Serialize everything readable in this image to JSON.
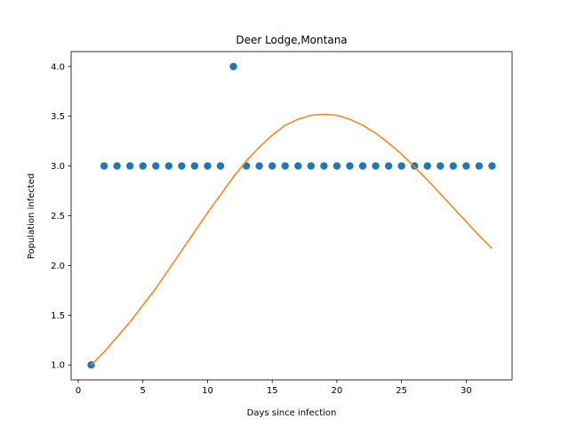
{
  "chart_data": {
    "type": "scatter",
    "title": "Deer Lodge,Montana",
    "xlabel": "Days since infection",
    "ylabel": "Population infected",
    "xlim": [
      -0.55,
      33.55
    ],
    "ylim": [
      0.85,
      4.15
    ],
    "xticks": [
      0,
      5,
      10,
      15,
      20,
      25,
      30
    ],
    "yticks": [
      1.0,
      1.5,
      2.0,
      2.5,
      3.0,
      3.5,
      4.0
    ],
    "grid": false,
    "series": [
      {
        "kind": "scatter",
        "color": "#1f77b4",
        "x": [
          1,
          2,
          3,
          4,
          5,
          6,
          7,
          8,
          9,
          10,
          11,
          12,
          13,
          14,
          15,
          16,
          17,
          18,
          19,
          20,
          21,
          22,
          23,
          24,
          25,
          26,
          27,
          28,
          29,
          30,
          31,
          32
        ],
        "y": [
          1,
          3,
          3,
          3,
          3,
          3,
          3,
          3,
          3,
          3,
          3,
          4,
          3,
          3,
          3,
          3,
          3,
          3,
          3,
          3,
          3,
          3,
          3,
          3,
          3,
          3,
          3,
          3,
          3,
          3,
          3,
          3
        ]
      },
      {
        "kind": "line",
        "color": "#ff7f0e",
        "x": [
          1,
          2,
          3,
          4,
          5,
          6,
          7,
          8,
          9,
          10,
          11,
          12,
          13,
          14,
          15,
          16,
          17,
          18,
          19,
          20,
          21,
          22,
          23,
          24,
          25,
          26,
          27,
          28,
          29,
          30,
          31,
          32
        ],
        "y": [
          1.0,
          1.13,
          1.28,
          1.43,
          1.6,
          1.77,
          1.96,
          2.15,
          2.34,
          2.53,
          2.71,
          2.89,
          3.05,
          3.19,
          3.31,
          3.41,
          3.47,
          3.51,
          3.52,
          3.51,
          3.47,
          3.41,
          3.33,
          3.23,
          3.12,
          2.99,
          2.86,
          2.72,
          2.58,
          2.44,
          2.3,
          2.17
        ]
      }
    ]
  }
}
